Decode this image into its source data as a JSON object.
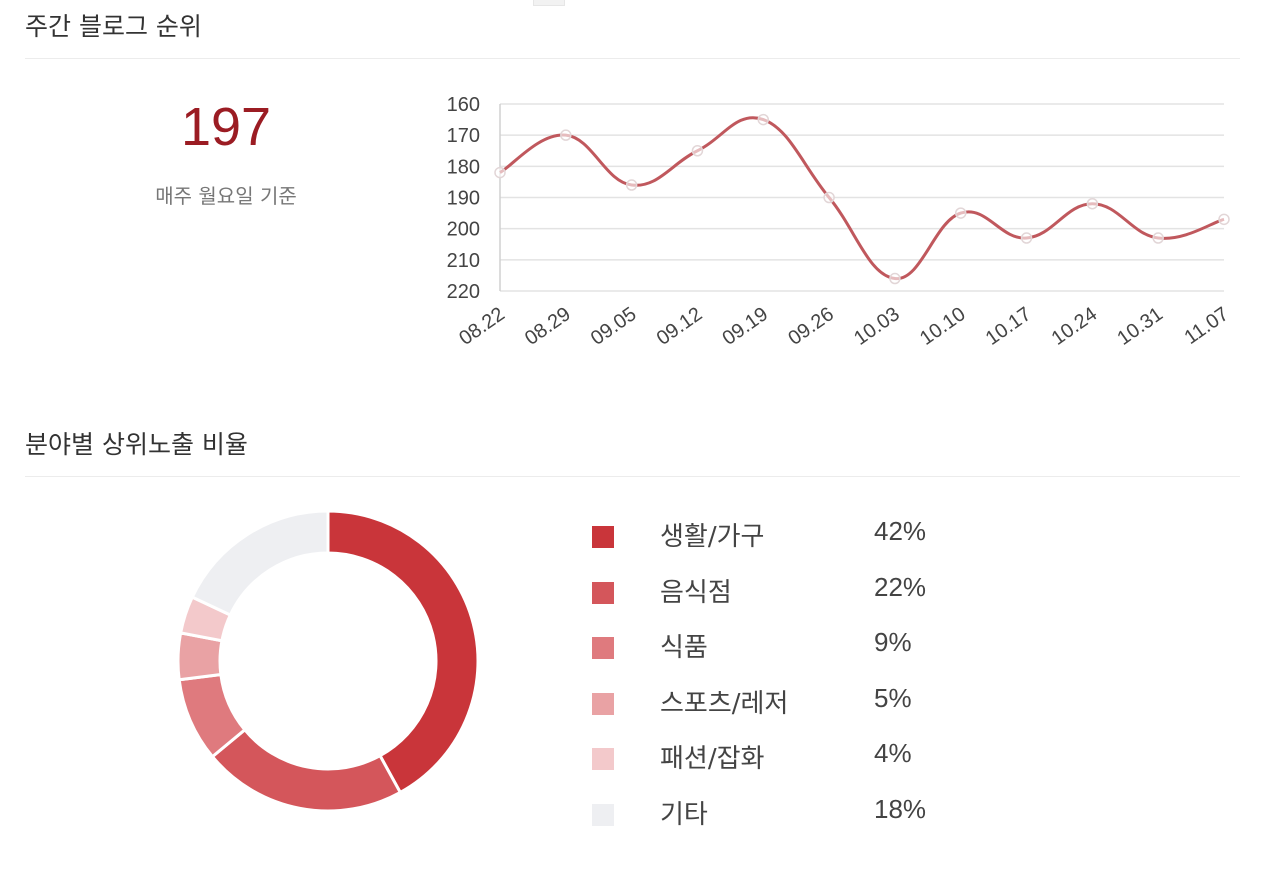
{
  "weekly": {
    "title": "주간 블로그 순위",
    "current_rank": "197",
    "caption": "매주 월요일 기준"
  },
  "category": {
    "title": "분야별 상위노출 비율"
  },
  "chart_data": [
    {
      "type": "line",
      "title": "",
      "xlabel": "",
      "ylabel": "",
      "y_reversed": true,
      "ylim": [
        160,
        220
      ],
      "y_ticks": [
        160,
        170,
        180,
        190,
        200,
        210,
        220
      ],
      "categories": [
        "08.22",
        "08.29",
        "09.05",
        "09.12",
        "09.19",
        "09.26",
        "10.03",
        "10.10",
        "10.17",
        "10.24",
        "10.31",
        "11.07"
      ],
      "series": [
        {
          "values": [
            182,
            170,
            186,
            175,
            165,
            190,
            216,
            195,
            203,
            192,
            203,
            197
          ],
          "color": "#c0585d"
        }
      ],
      "grid": true,
      "smooth": true
    },
    {
      "type": "pie",
      "donut": true,
      "categories": [
        "생활/가구",
        "음식점",
        "식품",
        "스포츠/레저",
        "패션/잡화",
        "기타"
      ],
      "values_label": [
        "42%",
        "22%",
        "9%",
        "5%",
        "4%",
        "18%"
      ],
      "values": [
        42,
        22,
        9,
        5,
        4,
        18
      ],
      "colors": [
        "#c9353a",
        "#d4565b",
        "#df7a7e",
        "#e9a2a4",
        "#f3c9cb",
        "#eeeff2"
      ],
      "legend": "right"
    }
  ]
}
